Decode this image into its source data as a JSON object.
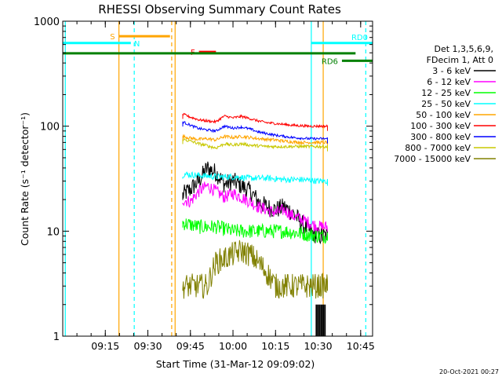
{
  "chart_data": {
    "type": "line",
    "title": "RHESSI Observing Summary Count Rates",
    "xlabel": "Start Time (31-Mar-12 09:09:02)",
    "ylabel": "Count Rate (s⁻¹ detector⁻¹)",
    "yscale": "log",
    "ylim": [
      1,
      1000
    ],
    "xlim_minutes": [
      9.0,
      10.82
    ],
    "y_ticks": [
      {
        "value": 1,
        "label": "1"
      },
      {
        "value": 10,
        "label": "10"
      },
      {
        "value": 100,
        "label": "100"
      },
      {
        "value": 1000,
        "label": "1000"
      }
    ],
    "x_ticks": [
      {
        "value": 9.25,
        "label": "09:15"
      },
      {
        "value": 9.5,
        "label": "09:30"
      },
      {
        "value": 9.75,
        "label": "09:45"
      },
      {
        "value": 10.0,
        "label": "10:00"
      },
      {
        "value": 10.25,
        "label": "10:15"
      },
      {
        "value": 10.5,
        "label": "10:30"
      },
      {
        "value": 10.75,
        "label": "10:45"
      }
    ],
    "data_start": 9.705,
    "data_end": 10.555,
    "legend_header": [
      "Det 1,3,5,6,9,",
      "FDecim 1, Att 0"
    ],
    "series": [
      {
        "name": "3 - 6 keV",
        "color": "#000000",
        "base": 30,
        "amp": 0.55,
        "noise": 0.09,
        "peak": 9.83,
        "x": [
          9.705,
          9.75,
          9.8,
          9.85,
          9.9,
          9.95,
          10.0,
          10.05,
          10.1,
          10.15,
          10.2,
          10.25,
          10.3,
          10.35,
          10.4,
          10.45,
          10.5,
          10.555
        ],
        "values": [
          22,
          25,
          30,
          40,
          36,
          28,
          30,
          27,
          24,
          19,
          17,
          16,
          17,
          15,
          12,
          10,
          9,
          9
        ]
      },
      {
        "name": "6 - 12 keV",
        "color": "#ff00ff",
        "x": [
          9.705,
          9.75,
          9.8,
          9.85,
          9.9,
          9.95,
          10.0,
          10.05,
          10.1,
          10.15,
          10.2,
          10.25,
          10.3,
          10.35,
          10.4,
          10.45,
          10.5,
          10.555
        ],
        "values": [
          20,
          19,
          24,
          27,
          24,
          21,
          23,
          21,
          19,
          17,
          16,
          15,
          16,
          14,
          13,
          12,
          11,
          11
        ],
        "noise": 0.06
      },
      {
        "name": "12 - 25 keV",
        "color": "#00ff00",
        "x": [
          9.705,
          9.8,
          9.9,
          10.0,
          10.1,
          10.2,
          10.3,
          10.4,
          10.5,
          10.555
        ],
        "values": [
          12,
          11,
          11,
          10,
          10,
          10,
          10,
          9.5,
          9,
          9
        ],
        "noise": 0.07
      },
      {
        "name": "25 - 50 keV",
        "color": "#00ffff",
        "x": [
          9.705,
          9.8,
          9.9,
          10.0,
          10.1,
          10.2,
          10.3,
          10.4,
          10.5,
          10.555
        ],
        "values": [
          35,
          34,
          33,
          33,
          32,
          32,
          31,
          31,
          30,
          30
        ],
        "noise": 0.03
      },
      {
        "name": "50 - 100 keV",
        "color": "#ffa500",
        "x": [
          9.705,
          9.75,
          9.8,
          9.85,
          9.9,
          9.95,
          10.0,
          10.05,
          10.1,
          10.15,
          10.2,
          10.25,
          10.3,
          10.35,
          10.4,
          10.45,
          10.5,
          10.555
        ],
        "values": [
          80,
          77,
          75,
          76,
          74,
          80,
          78,
          80,
          78,
          76,
          75,
          74,
          72,
          71,
          70,
          70,
          70,
          70
        ],
        "noise": 0.015
      },
      {
        "name": "100 - 300 keV",
        "color": "#ff0000",
        "x": [
          9.705,
          9.75,
          9.8,
          9.85,
          9.9,
          9.95,
          10.0,
          10.05,
          10.1,
          10.15,
          10.2,
          10.25,
          10.3,
          10.35,
          10.4,
          10.45,
          10.5,
          10.555
        ],
        "values": [
          130,
          122,
          115,
          112,
          110,
          125,
          120,
          124,
          118,
          112,
          108,
          106,
          104,
          102,
          101,
          100,
          100,
          100
        ],
        "noise": 0.012
      },
      {
        "name": "300 - 800 keV",
        "color": "#0000ff",
        "x": [
          9.705,
          9.75,
          9.8,
          9.85,
          9.9,
          9.95,
          10.0,
          10.05,
          10.1,
          10.15,
          10.2,
          10.25,
          10.3,
          10.35,
          10.4,
          10.45,
          10.5,
          10.555
        ],
        "values": [
          110,
          102,
          95,
          92,
          90,
          100,
          96,
          98,
          94,
          88,
          85,
          82,
          80,
          78,
          77,
          76,
          76,
          76
        ],
        "noise": 0.012
      },
      {
        "name": "800 - 7000 keV",
        "color": "#c8c800",
        "x": [
          9.705,
          9.75,
          9.8,
          9.85,
          9.9,
          9.95,
          10.0,
          10.05,
          10.1,
          10.15,
          10.2,
          10.25,
          10.3,
          10.35,
          10.4,
          10.45,
          10.5,
          10.555
        ],
        "values": [
          75,
          72,
          68,
          65,
          62,
          68,
          66,
          68,
          66,
          65,
          64,
          64,
          64,
          64,
          64,
          64,
          64,
          64
        ],
        "noise": 0.015
      },
      {
        "name": "7000 - 15000 keV",
        "color": "#808000",
        "x": [
          9.705,
          9.8,
          9.85,
          9.9,
          9.95,
          10.0,
          10.05,
          10.1,
          10.15,
          10.2,
          10.25,
          10.3,
          10.35,
          10.4,
          10.45,
          10.5,
          10.555
        ],
        "values": [
          3,
          3,
          3,
          5,
          5.5,
          6,
          6.5,
          6,
          5,
          4,
          3,
          3,
          3,
          3,
          3,
          3,
          3
        ],
        "noise": 0.12
      }
    ],
    "vertical_markers": [
      {
        "x": 9.015,
        "color": "#00ffff",
        "style": "solid"
      },
      {
        "x": 9.33,
        "color": "#ffa500",
        "style": "solid"
      },
      {
        "x": 9.42,
        "color": "#00ffff",
        "style": "dashed"
      },
      {
        "x": 9.64,
        "color": "#ffa500",
        "style": "dashed"
      },
      {
        "x": 9.66,
        "color": "#ffa500",
        "style": "solid"
      },
      {
        "x": 10.46,
        "color": "#00ffff",
        "style": "solid"
      },
      {
        "x": 10.53,
        "color": "#ffa500",
        "style": "solid"
      },
      {
        "x": 10.78,
        "color": "#00ffff",
        "style": "dashed"
      }
    ],
    "flag_bars": [
      {
        "label": "S",
        "color": "#ffa500",
        "x0": 9.33,
        "x1": 9.63,
        "y": 720,
        "label_side": "left"
      },
      {
        "label": "N",
        "color": "#00ffff",
        "x0": 9.0,
        "x1": 9.4,
        "y": 620,
        "label_side": "right"
      },
      {
        "label": "F",
        "color": "#ff0000",
        "x0": 9.8,
        "x1": 9.9,
        "y": 510,
        "label_side": "left"
      },
      {
        "label": "RD0",
        "color": "#00ffff",
        "x0": 10.46,
        "x1": 10.82,
        "y": 620,
        "label_side": "top"
      },
      {
        "label": "",
        "color": "#008000",
        "x0": 9.0,
        "x1": 10.72,
        "y": 495,
        "label_side": "none"
      },
      {
        "label": "RD6",
        "color": "#008000",
        "x0": 10.64,
        "x1": 10.82,
        "y": 420,
        "label_side": "left"
      }
    ],
    "grid": false,
    "legend_position": "right"
  },
  "footer_timestamp": "20-Oct-2021 00:27"
}
